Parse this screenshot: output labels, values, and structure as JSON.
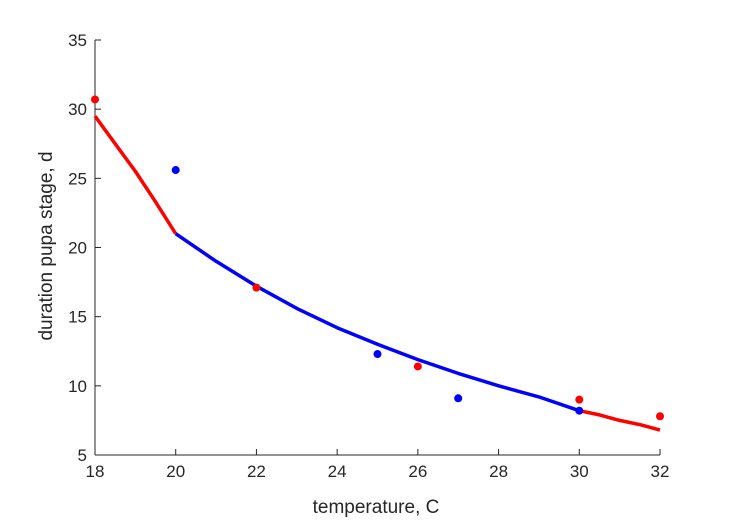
{
  "chart_data": {
    "type": "scatter",
    "title": "",
    "xlabel": "temperature, C",
    "ylabel": "duration pupa stage, d",
    "xlim": [
      18,
      32
    ],
    "ylim": [
      5,
      35
    ],
    "xticks": [
      18,
      20,
      22,
      24,
      26,
      28,
      30,
      32
    ],
    "yticks": [
      5,
      10,
      15,
      20,
      25,
      30,
      35
    ],
    "grid": false,
    "legend": "none",
    "colors": {
      "red": "#ff0000",
      "blue": "#0000ff",
      "axis": "#262626"
    },
    "series": [
      {
        "type": "scatter",
        "color": "red",
        "points": [
          {
            "x": 18,
            "y": 30.7
          },
          {
            "x": 22,
            "y": 17.1
          },
          {
            "x": 26,
            "y": 11.4
          },
          {
            "x": 30,
            "y": 9.0
          },
          {
            "x": 32,
            "y": 7.8
          }
        ]
      },
      {
        "type": "scatter",
        "color": "blue",
        "points": [
          {
            "x": 20,
            "y": 25.6
          },
          {
            "x": 25,
            "y": 12.3
          },
          {
            "x": 27,
            "y": 9.1
          },
          {
            "x": 30,
            "y": 8.2
          }
        ]
      },
      {
        "type": "line",
        "color": "red",
        "points": [
          {
            "x": 18,
            "y": 29.5
          },
          {
            "x": 18.5,
            "y": 27.5
          },
          {
            "x": 19,
            "y": 25.5
          },
          {
            "x": 19.5,
            "y": 23.3
          },
          {
            "x": 20,
            "y": 21.0
          }
        ]
      },
      {
        "type": "line",
        "color": "blue",
        "points": [
          {
            "x": 20,
            "y": 21.0
          },
          {
            "x": 21,
            "y": 19.0
          },
          {
            "x": 22,
            "y": 17.2
          },
          {
            "x": 23,
            "y": 15.6
          },
          {
            "x": 24,
            "y": 14.2
          },
          {
            "x": 25,
            "y": 13.0
          },
          {
            "x": 26,
            "y": 11.9
          },
          {
            "x": 27,
            "y": 10.9
          },
          {
            "x": 28,
            "y": 10.0
          },
          {
            "x": 29,
            "y": 9.2
          },
          {
            "x": 30,
            "y": 8.2
          }
        ]
      },
      {
        "type": "line",
        "color": "red",
        "points": [
          {
            "x": 30,
            "y": 8.2
          },
          {
            "x": 30.5,
            "y": 7.9
          },
          {
            "x": 31,
            "y": 7.5
          },
          {
            "x": 31.5,
            "y": 7.2
          },
          {
            "x": 32,
            "y": 6.8
          }
        ]
      }
    ]
  }
}
